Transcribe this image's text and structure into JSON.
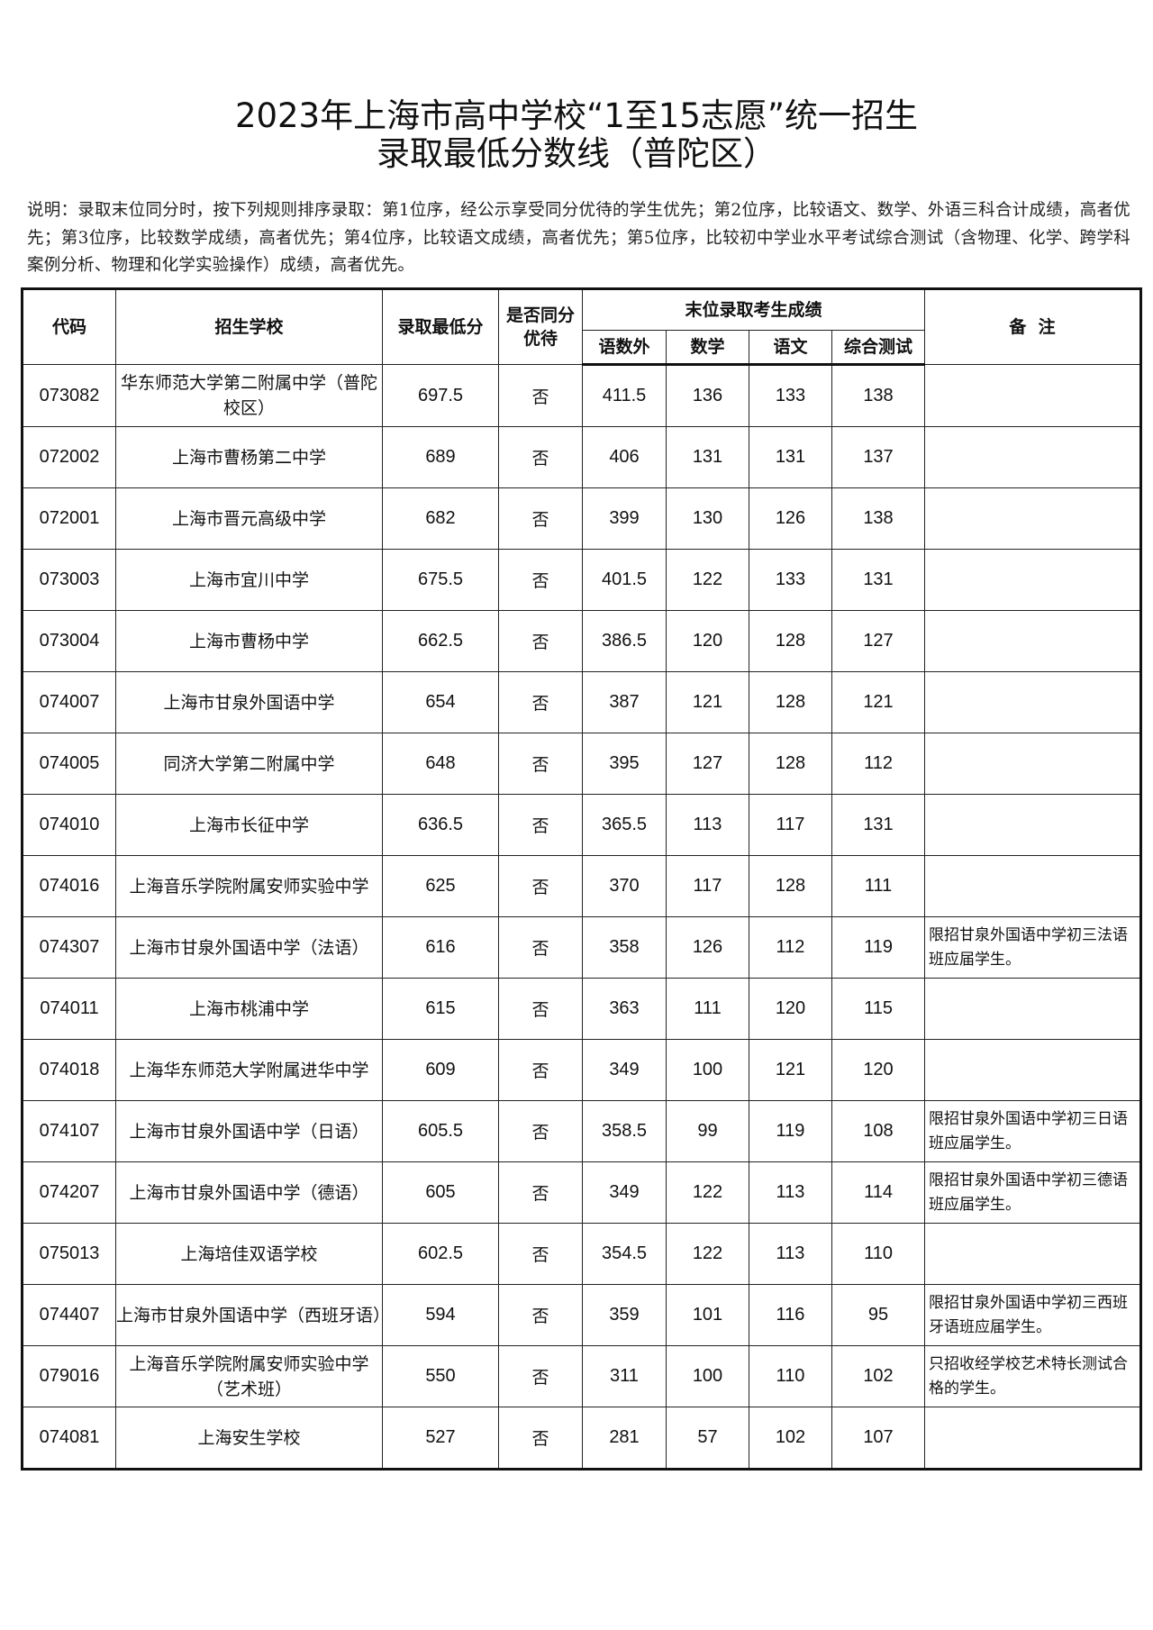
{
  "title_line1": "2023年上海市高中学校“1至15志愿”统一招生",
  "title_line2": "录取最低分数线（普陀区）",
  "note": "说明：录取末位同分时，按下列规则排序录取：第1位序，经公示享受同分优待的学生优先；第2位序，比较语文、数学、外语三科合计成绩，高者优先；第3位序，比较数学成绩，高者优先；第4位序，比较语文成绩，高者优先；第5位序，比较初中学业水平考试综合测试（含物理、化学、跨学科案例分析、物理和化学实验操作）成绩，高者优先。",
  "headers": {
    "code": "代码",
    "school": "招生学校",
    "min_score": "录取最低分",
    "tie_priority": "是否同分优待",
    "last_group": "末位录取考生成绩",
    "chinese_math_foreign": "语数外",
    "math": "数学",
    "chinese": "语文",
    "comprehensive": "综合测试",
    "remark": "备  注"
  },
  "rows": [
    {
      "code": "073082",
      "school": "华东师范大学第二附属中学（普陀校区）",
      "min": "697.5",
      "tie": "否",
      "cmf": "411.5",
      "math": "136",
      "chinese": "133",
      "comp": "138",
      "remark": ""
    },
    {
      "code": "072002",
      "school": "上海市曹杨第二中学",
      "min": "689",
      "tie": "否",
      "cmf": "406",
      "math": "131",
      "chinese": "131",
      "comp": "137",
      "remark": ""
    },
    {
      "code": "072001",
      "school": "上海市晋元高级中学",
      "min": "682",
      "tie": "否",
      "cmf": "399",
      "math": "130",
      "chinese": "126",
      "comp": "138",
      "remark": ""
    },
    {
      "code": "073003",
      "school": "上海市宜川中学",
      "min": "675.5",
      "tie": "否",
      "cmf": "401.5",
      "math": "122",
      "chinese": "133",
      "comp": "131",
      "remark": ""
    },
    {
      "code": "073004",
      "school": "上海市曹杨中学",
      "min": "662.5",
      "tie": "否",
      "cmf": "386.5",
      "math": "120",
      "chinese": "128",
      "comp": "127",
      "remark": ""
    },
    {
      "code": "074007",
      "school": "上海市甘泉外国语中学",
      "min": "654",
      "tie": "否",
      "cmf": "387",
      "math": "121",
      "chinese": "128",
      "comp": "121",
      "remark": ""
    },
    {
      "code": "074005",
      "school": "同济大学第二附属中学",
      "min": "648",
      "tie": "否",
      "cmf": "395",
      "math": "127",
      "chinese": "128",
      "comp": "112",
      "remark": ""
    },
    {
      "code": "074010",
      "school": "上海市长征中学",
      "min": "636.5",
      "tie": "否",
      "cmf": "365.5",
      "math": "113",
      "chinese": "117",
      "comp": "131",
      "remark": ""
    },
    {
      "code": "074016",
      "school": "上海音乐学院附属安师实验中学",
      "min": "625",
      "tie": "否",
      "cmf": "370",
      "math": "117",
      "chinese": "128",
      "comp": "111",
      "remark": ""
    },
    {
      "code": "074307",
      "school": "上海市甘泉外国语中学（法语）",
      "min": "616",
      "tie": "否",
      "cmf": "358",
      "math": "126",
      "chinese": "112",
      "comp": "119",
      "remark": "限招甘泉外国语中学初三法语班应届学生。"
    },
    {
      "code": "074011",
      "school": "上海市桃浦中学",
      "min": "615",
      "tie": "否",
      "cmf": "363",
      "math": "111",
      "chinese": "120",
      "comp": "115",
      "remark": ""
    },
    {
      "code": "074018",
      "school": "上海华东师范大学附属进华中学",
      "min": "609",
      "tie": "否",
      "cmf": "349",
      "math": "100",
      "chinese": "121",
      "comp": "120",
      "remark": ""
    },
    {
      "code": "074107",
      "school": "上海市甘泉外国语中学（日语）",
      "min": "605.5",
      "tie": "否",
      "cmf": "358.5",
      "math": "99",
      "chinese": "119",
      "comp": "108",
      "remark": "限招甘泉外国语中学初三日语班应届学生。"
    },
    {
      "code": "074207",
      "school": "上海市甘泉外国语中学（德语）",
      "min": "605",
      "tie": "否",
      "cmf": "349",
      "math": "122",
      "chinese": "113",
      "comp": "114",
      "remark": "限招甘泉外国语中学初三德语班应届学生。"
    },
    {
      "code": "075013",
      "school": "上海培佳双语学校",
      "min": "602.5",
      "tie": "否",
      "cmf": "354.5",
      "math": "122",
      "chinese": "113",
      "comp": "110",
      "remark": ""
    },
    {
      "code": "074407",
      "school": "上海市甘泉外国语中学（西班牙语）",
      "min": "594",
      "tie": "否",
      "cmf": "359",
      "math": "101",
      "chinese": "116",
      "comp": "95",
      "remark": "限招甘泉外国语中学初三西班牙语班应届学生。"
    },
    {
      "code": "079016",
      "school": "上海音乐学院附属安师实验中学（艺术班）",
      "min": "550",
      "tie": "否",
      "cmf": "311",
      "math": "100",
      "chinese": "110",
      "comp": "102",
      "remark": "只招收经学校艺术特长测试合格的学生。"
    },
    {
      "code": "074081",
      "school": "上海安生学校",
      "min": "527",
      "tie": "否",
      "cmf": "281",
      "math": "57",
      "chinese": "102",
      "comp": "107",
      "remark": ""
    }
  ]
}
